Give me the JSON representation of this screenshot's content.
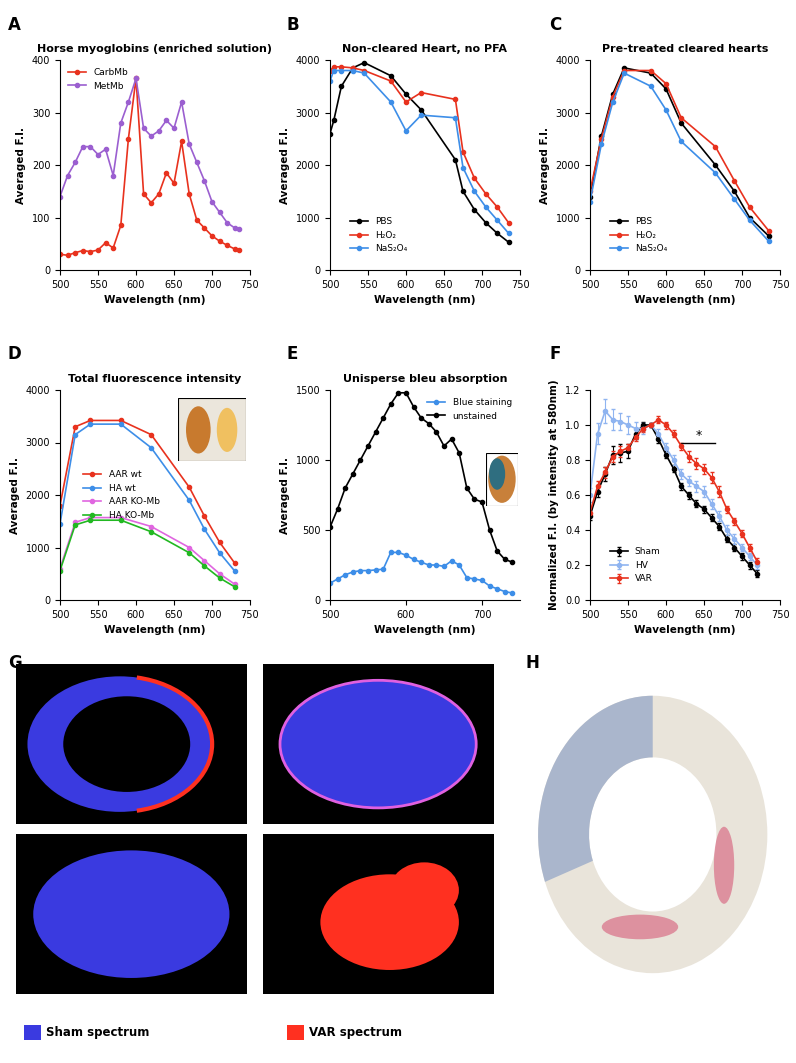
{
  "panel_labels": [
    "A",
    "B",
    "C",
    "D",
    "E",
    "F",
    "G",
    "H"
  ],
  "chart_data": [
    {
      "type": "line",
      "title": "Horse myoglobins (enriched solution)",
      "x_label": "Wavelength (nm)",
      "y_label": "Averaged F.I.",
      "xlim": [
        500,
        750
      ],
      "xticks": [
        500,
        550,
        600,
        650,
        700,
        750
      ],
      "ylim": [
        0,
        400
      ],
      "yticks": [
        0,
        100,
        200,
        300,
        400
      ],
      "legend": "upper left",
      "x": [
        500,
        510,
        520,
        530,
        540,
        550,
        560,
        570,
        580,
        590,
        600,
        610,
        620,
        630,
        640,
        650,
        660,
        670,
        680,
        690,
        700,
        710,
        720,
        730,
        735
      ],
      "series": [
        {
          "name": "CarbMb",
          "color": "#e8321e",
          "marker": "o",
          "values": [
            30,
            28,
            33,
            37,
            35,
            38,
            52,
            42,
            85,
            250,
            365,
            145,
            128,
            145,
            185,
            165,
            245,
            145,
            95,
            80,
            65,
            55,
            47,
            40,
            38
          ]
        },
        {
          "name": "MetMb",
          "color": "#9b5fd0",
          "marker": "o",
          "values": [
            140,
            180,
            205,
            235,
            235,
            220,
            230,
            180,
            280,
            320,
            365,
            270,
            255,
            265,
            285,
            270,
            320,
            240,
            205,
            170,
            130,
            110,
            90,
            80,
            78
          ]
        }
      ]
    },
    {
      "type": "line",
      "title": "Non-cleared Heart, no PFA",
      "x_label": "Wavelength (nm)",
      "y_label": "Averaged F.I.",
      "xlim": [
        500,
        750
      ],
      "xticks": [
        500,
        550,
        600,
        650,
        700,
        750
      ],
      "ylim": [
        0,
        4000
      ],
      "yticks": [
        0,
        1000,
        2000,
        3000,
        4000
      ],
      "legend": "lower left",
      "x": [
        500,
        505,
        515,
        530,
        545,
        580,
        600,
        620,
        665,
        675,
        690,
        705,
        720,
        735
      ],
      "series": [
        {
          "name": "PBS",
          "color": "#000000",
          "marker": "o",
          "values": [
            2600,
            2850,
            3500,
            3850,
            3950,
            3700,
            3350,
            3050,
            2100,
            1500,
            1150,
            900,
            700,
            530
          ]
        },
        {
          "name": "H₂O₂",
          "color": "#e8321e",
          "marker": "o",
          "values": [
            3800,
            3870,
            3870,
            3850,
            3800,
            3600,
            3200,
            3380,
            3250,
            2250,
            1750,
            1450,
            1200,
            900
          ]
        },
        {
          "name": "NaS₂O₄",
          "color": "#3d8ee8",
          "marker": "o",
          "values": [
            3600,
            3800,
            3800,
            3800,
            3750,
            3200,
            2650,
            2950,
            2900,
            1950,
            1500,
            1200,
            950,
            700
          ]
        }
      ]
    },
    {
      "type": "line",
      "title": "Pre-treated cleared hearts",
      "x_label": "Wavelength (nm)",
      "y_label": "Averaged F.I.",
      "xlim": [
        500,
        750
      ],
      "xticks": [
        500,
        550,
        600,
        650,
        700,
        750
      ],
      "ylim": [
        0,
        4000
      ],
      "yticks": [
        0,
        1000,
        2000,
        3000,
        4000
      ],
      "legend": "lower left",
      "x": [
        500,
        515,
        530,
        545,
        580,
        600,
        620,
        665,
        690,
        710,
        735
      ],
      "series": [
        {
          "name": "PBS",
          "color": "#000000",
          "marker": "o",
          "values": [
            1400,
            2550,
            3350,
            3850,
            3750,
            3450,
            2800,
            2000,
            1500,
            1000,
            650
          ]
        },
        {
          "name": "H₂O₂",
          "color": "#e8321e",
          "marker": "o",
          "values": [
            1500,
            2500,
            3300,
            3800,
            3800,
            3550,
            2900,
            2350,
            1700,
            1200,
            750
          ]
        },
        {
          "name": "NaS₂O₄",
          "color": "#3d8ee8",
          "marker": "o",
          "values": [
            1300,
            2400,
            3200,
            3750,
            3500,
            3050,
            2450,
            1850,
            1350,
            950,
            550
          ]
        }
      ]
    },
    {
      "type": "line",
      "title": "Total fluorescence intensity",
      "x_label": "Wavelength (nm)",
      "y_label": "Averaged F.I.",
      "xlim": [
        500,
        750
      ],
      "xticks": [
        500,
        550,
        600,
        650,
        700,
        750
      ],
      "ylim": [
        0,
        4000
      ],
      "yticks": [
        0,
        1000,
        2000,
        3000,
        4000
      ],
      "legend": "center left",
      "x": [
        500,
        520,
        540,
        580,
        620,
        670,
        690,
        710,
        730
      ],
      "series": [
        {
          "name": "AAR wt",
          "color": "#e8321e",
          "marker": "o",
          "values": [
            1800,
            3300,
            3420,
            3420,
            3150,
            2150,
            1600,
            1100,
            700
          ]
        },
        {
          "name": "HA wt",
          "color": "#3d8ee8",
          "marker": "o",
          "values": [
            1450,
            3150,
            3350,
            3350,
            2900,
            1900,
            1350,
            900,
            550
          ]
        },
        {
          "name": "AAR KO-Mb",
          "color": "#e066e0",
          "marker": "o",
          "values": [
            600,
            1480,
            1570,
            1570,
            1400,
            1000,
            750,
            500,
            300
          ]
        },
        {
          "name": "HA KO-Mb",
          "color": "#22b822",
          "marker": "o",
          "values": [
            560,
            1430,
            1520,
            1520,
            1300,
            900,
            650,
            420,
            250
          ]
        }
      ]
    },
    {
      "type": "line",
      "title": "Unisperse bleu absorption",
      "x_label": "Wavelength (nm)",
      "y_label": "Averaged F.I.",
      "xlim": [
        500,
        750
      ],
      "xticks": [
        500,
        600,
        700
      ],
      "ylim": [
        0,
        1500
      ],
      "yticks": [
        0,
        500,
        1000,
        1500
      ],
      "legend": "upper right",
      "x": [
        500,
        510,
        520,
        530,
        540,
        550,
        560,
        570,
        580,
        590,
        600,
        610,
        620,
        630,
        640,
        650,
        660,
        670,
        680,
        690,
        700,
        710,
        720,
        730,
        740
      ],
      "series": [
        {
          "name": "Blue staining",
          "color": "#3d8ee8",
          "marker": "o",
          "values": [
            120,
            150,
            180,
            200,
            210,
            210,
            215,
            220,
            340,
            340,
            320,
            290,
            270,
            250,
            250,
            240,
            280,
            250,
            160,
            150,
            140,
            100,
            80,
            60,
            50
          ]
        },
        {
          "name": "unstained",
          "color": "#000000",
          "marker": "o",
          "values": [
            520,
            650,
            800,
            900,
            1000,
            1100,
            1200,
            1300,
            1400,
            1480,
            1480,
            1380,
            1300,
            1260,
            1200,
            1100,
            1150,
            1050,
            800,
            720,
            700,
            500,
            350,
            290,
            270
          ]
        }
      ]
    },
    {
      "type": "line",
      "title": "",
      "x_label": "Wavelength (nm)",
      "y_label": "Normalized F.I. (by intensity at 580nm)",
      "xlim": [
        500,
        750
      ],
      "xticks": [
        500,
        550,
        600,
        650,
        700,
        750
      ],
      "ylim": [
        0.0,
        1.2
      ],
      "yticks": [
        0.0,
        0.2,
        0.4,
        0.6,
        0.8,
        1.0,
        1.2
      ],
      "legend": "lower left",
      "x": [
        500,
        510,
        520,
        530,
        540,
        550,
        560,
        570,
        580,
        590,
        600,
        610,
        620,
        630,
        640,
        650,
        660,
        670,
        680,
        690,
        700,
        710,
        720
      ],
      "series": [
        {
          "name": "Sham",
          "color": "#000000",
          "marker": "o",
          "values": [
            0.48,
            0.62,
            0.72,
            0.83,
            0.84,
            0.85,
            0.95,
            1.0,
            1.0,
            0.92,
            0.83,
            0.75,
            0.65,
            0.6,
            0.55,
            0.52,
            0.47,
            0.42,
            0.35,
            0.3,
            0.25,
            0.2,
            0.15
          ],
          "errors": [
            0.02,
            0.03,
            0.04,
            0.05,
            0.05,
            0.04,
            0.03,
            0.02,
            0.01,
            0.02,
            0.02,
            0.02,
            0.02,
            0.02,
            0.02,
            0.02,
            0.02,
            0.02,
            0.02,
            0.02,
            0.02,
            0.02,
            0.02
          ]
        },
        {
          "name": "HV",
          "color": "#8fb4f0",
          "marker": "o",
          "values": [
            0.6,
            0.95,
            1.08,
            1.03,
            1.02,
            1.0,
            0.98,
            0.98,
            1.0,
            0.95,
            0.87,
            0.8,
            0.72,
            0.68,
            0.65,
            0.62,
            0.55,
            0.48,
            0.4,
            0.35,
            0.3,
            0.25,
            0.2
          ],
          "errors": [
            0.04,
            0.06,
            0.07,
            0.06,
            0.05,
            0.05,
            0.04,
            0.03,
            0.01,
            0.03,
            0.03,
            0.03,
            0.03,
            0.03,
            0.03,
            0.03,
            0.03,
            0.03,
            0.03,
            0.03,
            0.02,
            0.02,
            0.02
          ]
        },
        {
          "name": "VAR",
          "color": "#e8321e",
          "marker": "o",
          "values": [
            0.5,
            0.65,
            0.73,
            0.82,
            0.85,
            0.87,
            0.93,
            0.98,
            1.0,
            1.03,
            1.0,
            0.95,
            0.88,
            0.82,
            0.78,
            0.75,
            0.7,
            0.62,
            0.52,
            0.45,
            0.38,
            0.3,
            0.22
          ],
          "errors": [
            0.02,
            0.03,
            0.03,
            0.03,
            0.03,
            0.02,
            0.02,
            0.02,
            0.01,
            0.02,
            0.02,
            0.02,
            0.02,
            0.03,
            0.03,
            0.03,
            0.03,
            0.03,
            0.02,
            0.02,
            0.02,
            0.02,
            0.02
          ]
        }
      ],
      "annotations": [
        {
          "text": "*",
          "x": [
            620,
            665
          ],
          "y": 0.9
        }
      ]
    }
  ],
  "panel_G": {
    "legend": [
      {
        "name": "Sham spectrum",
        "color": "#3a3ae0"
      },
      {
        "name": "VAR spectrum",
        "color": "#ff3020"
      }
    ]
  }
}
